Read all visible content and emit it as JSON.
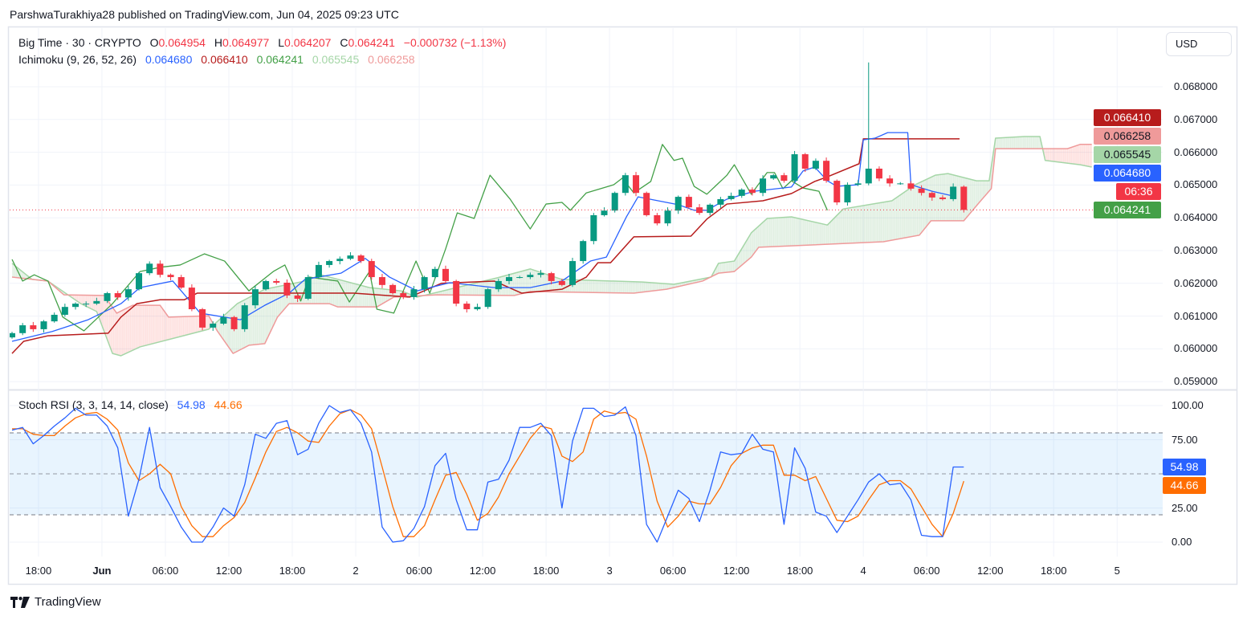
{
  "attribution": "ParshwaTurakhiya28 published on TradingView.com, Jun 04, 2025 09:23 UTC",
  "legend": {
    "symbol": "Big Time · 30 · CRYPTO",
    "o_label": "O",
    "open": "0.064954",
    "h_label": "H",
    "high": "0.064977",
    "l_label": "L",
    "low": "0.064207",
    "c_label": "C",
    "close": "0.064241",
    "change": "−0.000732 (−1.13%)"
  },
  "ichimoku_legend": {
    "name": "Ichimoku (9, 26, 52, 26)",
    "values": [
      {
        "text": "0.064680",
        "color": "#2962ff"
      },
      {
        "text": "0.066410",
        "color": "#b71c1c"
      },
      {
        "text": "0.064241",
        "color": "#43a047"
      },
      {
        "text": "0.065545",
        "color": "#a5d6a7"
      },
      {
        "text": "0.066258",
        "color": "#ef9a9a"
      }
    ]
  },
  "stoch_legend": {
    "name": "Stoch RSI (3, 3, 14, 14, close)",
    "k": "54.98",
    "d": "44.66"
  },
  "currency_button": "USD",
  "price_axis": [
    "0.068000",
    "0.067000",
    "0.066000",
    "0.065000",
    "0.064000",
    "0.063000",
    "0.062000",
    "0.061000",
    "0.060000",
    "0.059000"
  ],
  "stoch_axis": [
    "100.00",
    "75.00",
    "25.00",
    "0.00"
  ],
  "price_tags": [
    {
      "text": "0.066410",
      "value": 0.06641,
      "bg": "#b71c1c",
      "fg": "#ffffff"
    },
    {
      "text": "0.066258",
      "value": 0.066258,
      "bg": "#ef9a9a",
      "fg": "#131722"
    },
    {
      "text": "0.065545",
      "value": 0.065545,
      "bg": "#a5d6a7",
      "fg": "#131722"
    },
    {
      "text": "0.064680",
      "value": 0.06468,
      "bg": "#2962ff",
      "fg": "#ffffff"
    },
    {
      "text": "06:36",
      "value": 0.064241,
      "bg": "#f23645",
      "fg": "#ffffff"
    },
    {
      "text": "0.064241",
      "value": 0.064241,
      "bg": "#43a047",
      "fg": "#ffffff"
    }
  ],
  "stoch_tags": [
    {
      "text": "54.98",
      "value": 54.98,
      "bg": "#2962ff",
      "fg": "#ffffff"
    },
    {
      "text": "44.66",
      "value": 44.66,
      "bg": "#ff6d00",
      "fg": "#ffffff"
    }
  ],
  "time_axis": [
    {
      "text": "18:00",
      "bold": false
    },
    {
      "text": "Jun",
      "bold": true
    },
    {
      "text": "06:00",
      "bold": false
    },
    {
      "text": "12:00",
      "bold": false
    },
    {
      "text": "18:00",
      "bold": false
    },
    {
      "text": "2",
      "bold": false
    },
    {
      "text": "06:00",
      "bold": false
    },
    {
      "text": "12:00",
      "bold": false
    },
    {
      "text": "18:00",
      "bold": false
    },
    {
      "text": "3",
      "bold": false
    },
    {
      "text": "06:00",
      "bold": false
    },
    {
      "text": "12:00",
      "bold": false
    },
    {
      "text": "18:00",
      "bold": false
    },
    {
      "text": "4",
      "bold": false
    },
    {
      "text": "06:00",
      "bold": false
    },
    {
      "text": "12:00",
      "bold": false
    },
    {
      "text": "18:00",
      "bold": false
    },
    {
      "text": "5",
      "bold": false
    }
  ],
  "footer_brand": "TradingView",
  "colors": {
    "up": "#089981",
    "down": "#f23645",
    "tenkan": "#2962ff",
    "kijun": "#b71c1c",
    "chikou": "#43a047",
    "span_a": "#a5d6a7",
    "span_b": "#ef9a9a",
    "stoch_k": "#2962ff",
    "stoch_d": "#ff6d00"
  },
  "chart_data": {
    "type": "candlestick",
    "title": "Big Time · 30 · CRYPTO",
    "x_unit": "hours from first bar",
    "ylim": [
      0.05881,
      0.06979
    ],
    "last_price": 0.064241,
    "candles": {
      "first_open": 0.06035,
      "close": [
        0.06048,
        0.06072,
        0.0606,
        0.06084,
        0.06104,
        0.06128,
        0.06138,
        0.06138,
        0.06146,
        0.0617,
        0.06157,
        0.06182,
        0.06231,
        0.0626,
        0.06226,
        0.06219,
        0.06187,
        0.06121,
        0.06065,
        0.06077,
        0.06097,
        0.0606,
        0.06133,
        0.06182,
        0.06207,
        0.06202,
        0.06163,
        0.06153,
        0.06219,
        0.06256,
        0.06268,
        0.06275,
        0.06285,
        0.06268,
        0.06219,
        0.06195,
        0.0617,
        0.06158,
        0.06182,
        0.06219,
        0.06244,
        0.06207,
        0.06138,
        0.06121,
        0.06128,
        0.06182,
        0.06207,
        0.06219,
        0.06219,
        0.06226,
        0.06231,
        0.06207,
        0.06195,
        0.06268,
        0.06329,
        0.06408,
        0.06422,
        0.06476,
        0.0653,
        0.06476,
        0.06408,
        0.06383,
        0.06422,
        0.06464,
        0.06432,
        0.06415,
        0.0644,
        0.06457,
        0.06467,
        0.06486,
        0.06476,
        0.0652,
        0.0653,
        0.06513,
        0.06594,
        0.0655,
        0.06574,
        0.06513,
        0.06447,
        0.06501,
        0.06505,
        0.0655,
        0.0652,
        0.06505,
        0.06505,
        0.06489,
        0.06476,
        0.06462,
        0.06457,
        0.06495,
        0.064241
      ],
      "spike": {
        "index": 81,
        "high": 0.06874
      }
    },
    "ichimoku": {
      "tenkan": [
        [
          0,
          0.06023
        ],
        [
          3.8,
          0.06053
        ],
        [
          7.2,
          0.06089
        ],
        [
          10.3,
          0.06138
        ],
        [
          12.1,
          0.06187
        ],
        [
          15.2,
          0.06207
        ],
        [
          17.8,
          0.06109
        ],
        [
          21.6,
          0.06089
        ],
        [
          23.9,
          0.06133
        ],
        [
          26.2,
          0.0617
        ],
        [
          27.7,
          0.06212
        ],
        [
          31.1,
          0.06231
        ],
        [
          33.4,
          0.06276
        ],
        [
          35.7,
          0.06219
        ],
        [
          38.3,
          0.06177
        ],
        [
          41.4,
          0.06202
        ],
        [
          45.6,
          0.06187
        ],
        [
          49,
          0.06187
        ],
        [
          52,
          0.06207
        ],
        [
          54.7,
          0.06268
        ],
        [
          56.2,
          0.0628
        ],
        [
          58.1,
          0.06403
        ],
        [
          59.2,
          0.06464
        ],
        [
          61.1,
          0.06452
        ],
        [
          63,
          0.0644
        ],
        [
          64.5,
          0.06423
        ],
        [
          65.7,
          0.06423
        ],
        [
          67.6,
          0.06457
        ],
        [
          70.2,
          0.06481
        ],
        [
          73.7,
          0.06494
        ],
        [
          74.8,
          0.06543
        ],
        [
          75.9,
          0.06555
        ],
        [
          77.1,
          0.06513
        ],
        [
          78,
          0.06496
        ],
        [
          80,
          0.06501
        ],
        [
          80.5,
          0.06638
        ],
        [
          81.6,
          0.06643
        ],
        [
          82.8,
          0.0666
        ],
        [
          84.7,
          0.0666
        ],
        [
          85,
          0.06501
        ],
        [
          87,
          0.06481
        ],
        [
          88.8,
          0.06468
        ]
      ],
      "kijun": [
        [
          0,
          0.05986
        ],
        [
          1.1,
          0.06023
        ],
        [
          3.4,
          0.0604
        ],
        [
          9.1,
          0.06048
        ],
        [
          10.3,
          0.06097
        ],
        [
          11.8,
          0.06138
        ],
        [
          14,
          0.0615
        ],
        [
          16.3,
          0.0615
        ],
        [
          17.5,
          0.0617
        ],
        [
          32.3,
          0.0617
        ],
        [
          37.6,
          0.06158
        ],
        [
          40.6,
          0.062
        ],
        [
          45.6,
          0.06207
        ],
        [
          48.2,
          0.0617
        ],
        [
          52,
          0.06182
        ],
        [
          54.3,
          0.06219
        ],
        [
          55.4,
          0.06263
        ],
        [
          56.6,
          0.06263
        ],
        [
          58.8,
          0.06342
        ],
        [
          64.2,
          0.06344
        ],
        [
          65.7,
          0.06396
        ],
        [
          67.6,
          0.06442
        ],
        [
          71,
          0.06452
        ],
        [
          73.7,
          0.06474
        ],
        [
          75.9,
          0.06511
        ],
        [
          77.1,
          0.06525
        ],
        [
          80.1,
          0.06565
        ],
        [
          80.5,
          0.06641
        ],
        [
          89.6,
          0.06641
        ]
      ],
      "chikou": [
        [
          0,
          0.06273
        ],
        [
          1,
          0.06207
        ],
        [
          2.1,
          0.06226
        ],
        [
          3.4,
          0.06207
        ],
        [
          4.8,
          0.06097
        ],
        [
          6.8,
          0.06055
        ],
        [
          9.5,
          0.06138
        ],
        [
          12.1,
          0.06236
        ],
        [
          14,
          0.06249
        ],
        [
          15.9,
          0.06256
        ],
        [
          18.2,
          0.0629
        ],
        [
          20.1,
          0.06268
        ],
        [
          22.4,
          0.06177
        ],
        [
          24.7,
          0.06236
        ],
        [
          25.8,
          0.06256
        ],
        [
          27.3,
          0.06146
        ],
        [
          28.1,
          0.06219
        ],
        [
          30.8,
          0.06207
        ],
        [
          31.9,
          0.06143
        ],
        [
          33.8,
          0.06236
        ],
        [
          34.5,
          0.06121
        ],
        [
          36.1,
          0.06109
        ],
        [
          38.2,
          0.06268
        ],
        [
          39.5,
          0.0617
        ],
        [
          41,
          0.06305
        ],
        [
          42.1,
          0.06415
        ],
        [
          43.7,
          0.06398
        ],
        [
          45.2,
          0.0653
        ],
        [
          47.1,
          0.06457
        ],
        [
          49,
          0.06366
        ],
        [
          50.5,
          0.06442
        ],
        [
          52,
          0.06447
        ],
        [
          52.8,
          0.06423
        ],
        [
          54.3,
          0.06476
        ],
        [
          56.9,
          0.06501
        ],
        [
          57.7,
          0.06521
        ],
        [
          58.8,
          0.06476
        ],
        [
          60.4,
          0.06511
        ],
        [
          61.5,
          0.06624
        ],
        [
          62.6,
          0.06575
        ],
        [
          63.4,
          0.06582
        ],
        [
          64.5,
          0.06496
        ],
        [
          65.7,
          0.06472
        ],
        [
          67.6,
          0.0653
        ],
        [
          68.3,
          0.06562
        ],
        [
          69.9,
          0.06472
        ],
        [
          71.4,
          0.06538
        ],
        [
          72.1,
          0.06538
        ],
        [
          72.9,
          0.06489
        ],
        [
          73.7,
          0.06513
        ],
        [
          74.8,
          0.06491
        ],
        [
          76.3,
          0.06481
        ],
        [
          77.1,
          0.06423
        ]
      ],
      "span_a": [
        [
          0,
          0.06261
        ],
        [
          1.9,
          0.06212
        ],
        [
          3.4,
          0.06207
        ],
        [
          6.5,
          0.06138
        ],
        [
          8,
          0.06114
        ],
        [
          9.5,
          0.05986
        ],
        [
          10.3,
          0.05979
        ],
        [
          12.1,
          0.06006
        ],
        [
          15.6,
          0.06035
        ],
        [
          18.6,
          0.0606
        ],
        [
          21.3,
          0.06138
        ],
        [
          23.9,
          0.06182
        ],
        [
          27.7,
          0.06207
        ],
        [
          29.2,
          0.06226
        ],
        [
          33.8,
          0.06187
        ],
        [
          36.8,
          0.06177
        ],
        [
          38.3,
          0.06158
        ],
        [
          41.4,
          0.06182
        ],
        [
          45.9,
          0.06217
        ],
        [
          49,
          0.06244
        ],
        [
          52,
          0.06212
        ],
        [
          59.6,
          0.06204
        ],
        [
          62.6,
          0.06197
        ],
        [
          66.1,
          0.06219
        ],
        [
          66.8,
          0.06261
        ],
        [
          68.3,
          0.06268
        ],
        [
          69.9,
          0.06354
        ],
        [
          71.4,
          0.06398
        ],
        [
          73.7,
          0.06403
        ],
        [
          77.1,
          0.06378
        ],
        [
          78.6,
          0.06427
        ],
        [
          83.2,
          0.06452
        ],
        [
          85.4,
          0.06501
        ],
        [
          87.3,
          0.0653
        ],
        [
          88.5,
          0.06535
        ],
        [
          91.2,
          0.06513
        ],
        [
          92.4,
          0.06513
        ],
        [
          93,
          0.06643
        ],
        [
          95.7,
          0.06648
        ],
        [
          97.2,
          0.06648
        ],
        [
          97.7,
          0.06575
        ],
        [
          101,
          0.06562
        ],
        [
          102.1,
          0.06555
        ]
      ],
      "span_b": [
        [
          0,
          0.06219
        ],
        [
          3.4,
          0.06207
        ],
        [
          4.9,
          0.06165
        ],
        [
          8.7,
          0.06163
        ],
        [
          9.9,
          0.06109
        ],
        [
          11.4,
          0.06133
        ],
        [
          14,
          0.06133
        ],
        [
          14.8,
          0.06097
        ],
        [
          18.6,
          0.06101
        ],
        [
          19.4,
          0.06055
        ],
        [
          20.9,
          0.05986
        ],
        [
          22.4,
          0.06011
        ],
        [
          23.9,
          0.06016
        ],
        [
          25.1,
          0.06097
        ],
        [
          26.2,
          0.06138
        ],
        [
          30,
          0.06138
        ],
        [
          30.8,
          0.06128
        ],
        [
          34.5,
          0.06128
        ],
        [
          36.1,
          0.06158
        ],
        [
          40.2,
          0.06165
        ],
        [
          47.5,
          0.06163
        ],
        [
          49,
          0.06175
        ],
        [
          58.8,
          0.0617
        ],
        [
          61.9,
          0.06182
        ],
        [
          65.3,
          0.06207
        ],
        [
          66.8,
          0.06231
        ],
        [
          68.3,
          0.06236
        ],
        [
          69.9,
          0.0628
        ],
        [
          70.6,
          0.0631
        ],
        [
          82.4,
          0.06327
        ],
        [
          85.8,
          0.06347
        ],
        [
          86.9,
          0.06391
        ],
        [
          90,
          0.06391
        ],
        [
          91.6,
          0.06452
        ],
        [
          92.6,
          0.06489
        ],
        [
          93,
          0.06611
        ],
        [
          99.8,
          0.06611
        ],
        [
          101,
          0.06624
        ],
        [
          102.1,
          0.06624
        ]
      ]
    },
    "stoch_rsi": {
      "range": [
        0,
        100
      ],
      "bands": [
        20,
        50,
        80
      ],
      "k": [
        82,
        84,
        72,
        78,
        85,
        91,
        98,
        93,
        93,
        85,
        69,
        19,
        46,
        84,
        40,
        26,
        11,
        0,
        0,
        11,
        25,
        19,
        42,
        79,
        76,
        87,
        89,
        64,
        68,
        87,
        100,
        95,
        97,
        87,
        66,
        11,
        0,
        1,
        10,
        26,
        56,
        65,
        31,
        9,
        9,
        44,
        46,
        60,
        84,
        84,
        87,
        78,
        25,
        74,
        98,
        98,
        92,
        93,
        99,
        78,
        13,
        0,
        19,
        38,
        32,
        15,
        38,
        66,
        64,
        65,
        79,
        68,
        66,
        13,
        69,
        54,
        22,
        19,
        7,
        19,
        31,
        44,
        50,
        42,
        43,
        31,
        5,
        4,
        4,
        55,
        54.98
      ],
      "d": [
        83,
        83,
        79,
        78,
        78,
        85,
        91,
        94,
        95,
        90,
        82,
        58,
        45,
        50,
        57,
        50,
        26,
        12,
        4,
        4,
        12,
        18,
        29,
        47,
        66,
        81,
        84,
        80,
        74,
        73,
        85,
        94,
        97,
        93,
        83,
        55,
        26,
        4,
        4,
        12,
        31,
        49,
        51,
        35,
        16,
        21,
        33,
        50,
        63,
        76,
        85,
        83,
        63,
        59,
        66,
        90,
        96,
        94,
        95,
        90,
        63,
        30,
        11,
        19,
        30,
        28,
        28,
        40,
        56,
        65,
        69,
        71,
        71,
        49,
        49,
        45,
        48,
        32,
        16,
        15,
        19,
        31,
        42,
        45,
        45,
        39,
        26,
        13,
        4,
        21,
        44.66
      ]
    }
  }
}
